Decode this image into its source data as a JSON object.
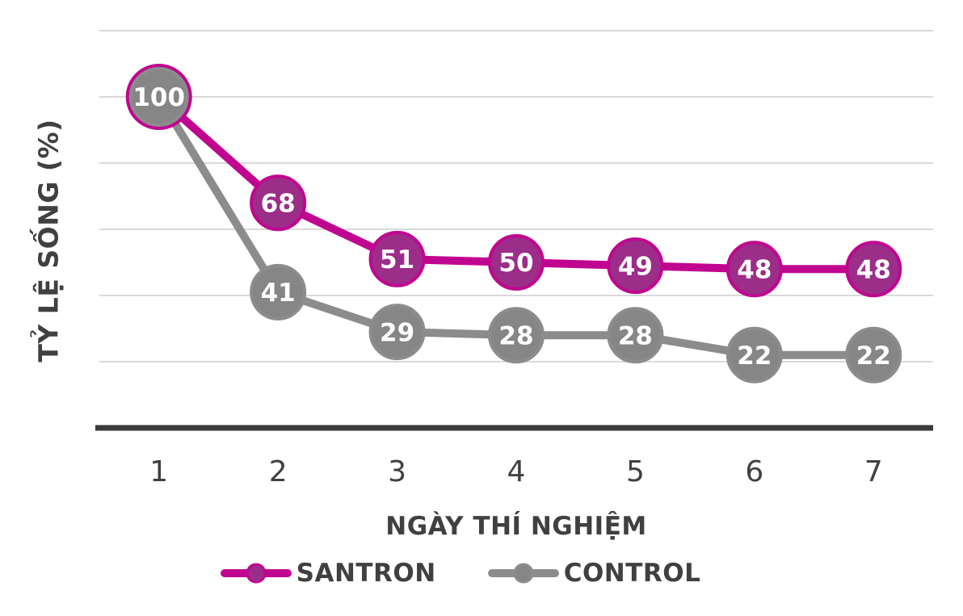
{
  "chart_data": {
    "type": "line",
    "x_categories": [
      "1",
      "2",
      "3",
      "4",
      "5",
      "6",
      "7"
    ],
    "series": [
      {
        "name": "SANTRON",
        "values": [
          100,
          68,
          51,
          50,
          49,
          48,
          48
        ],
        "line_color": "#C00690",
        "marker_fill": "#9C2D88",
        "marker_border": "#C00690"
      },
      {
        "name": "CONTROL",
        "values": [
          100,
          41,
          29,
          28,
          28,
          22,
          22
        ],
        "line_color": "#8C8C8C",
        "marker_fill": "#868686",
        "marker_border": "#8C8C8C"
      }
    ],
    "xlabel": "NGÀY THÍ NGHIỆM",
    "ylabel": "TỶ LỆ SỐNG (%)",
    "ylim": [
      0,
      120
    ],
    "grid_step": 20,
    "grid": true,
    "y_tick_labels_shown": false,
    "data_labels": "inside-marker",
    "legend_position": "bottom",
    "label_text_color": "#FFFFFF",
    "axis_text_color": "#404040",
    "gridline_color": "#D9D9D9",
    "axis_line_color": "#3B3B3B",
    "background": "#FFFFFF"
  }
}
